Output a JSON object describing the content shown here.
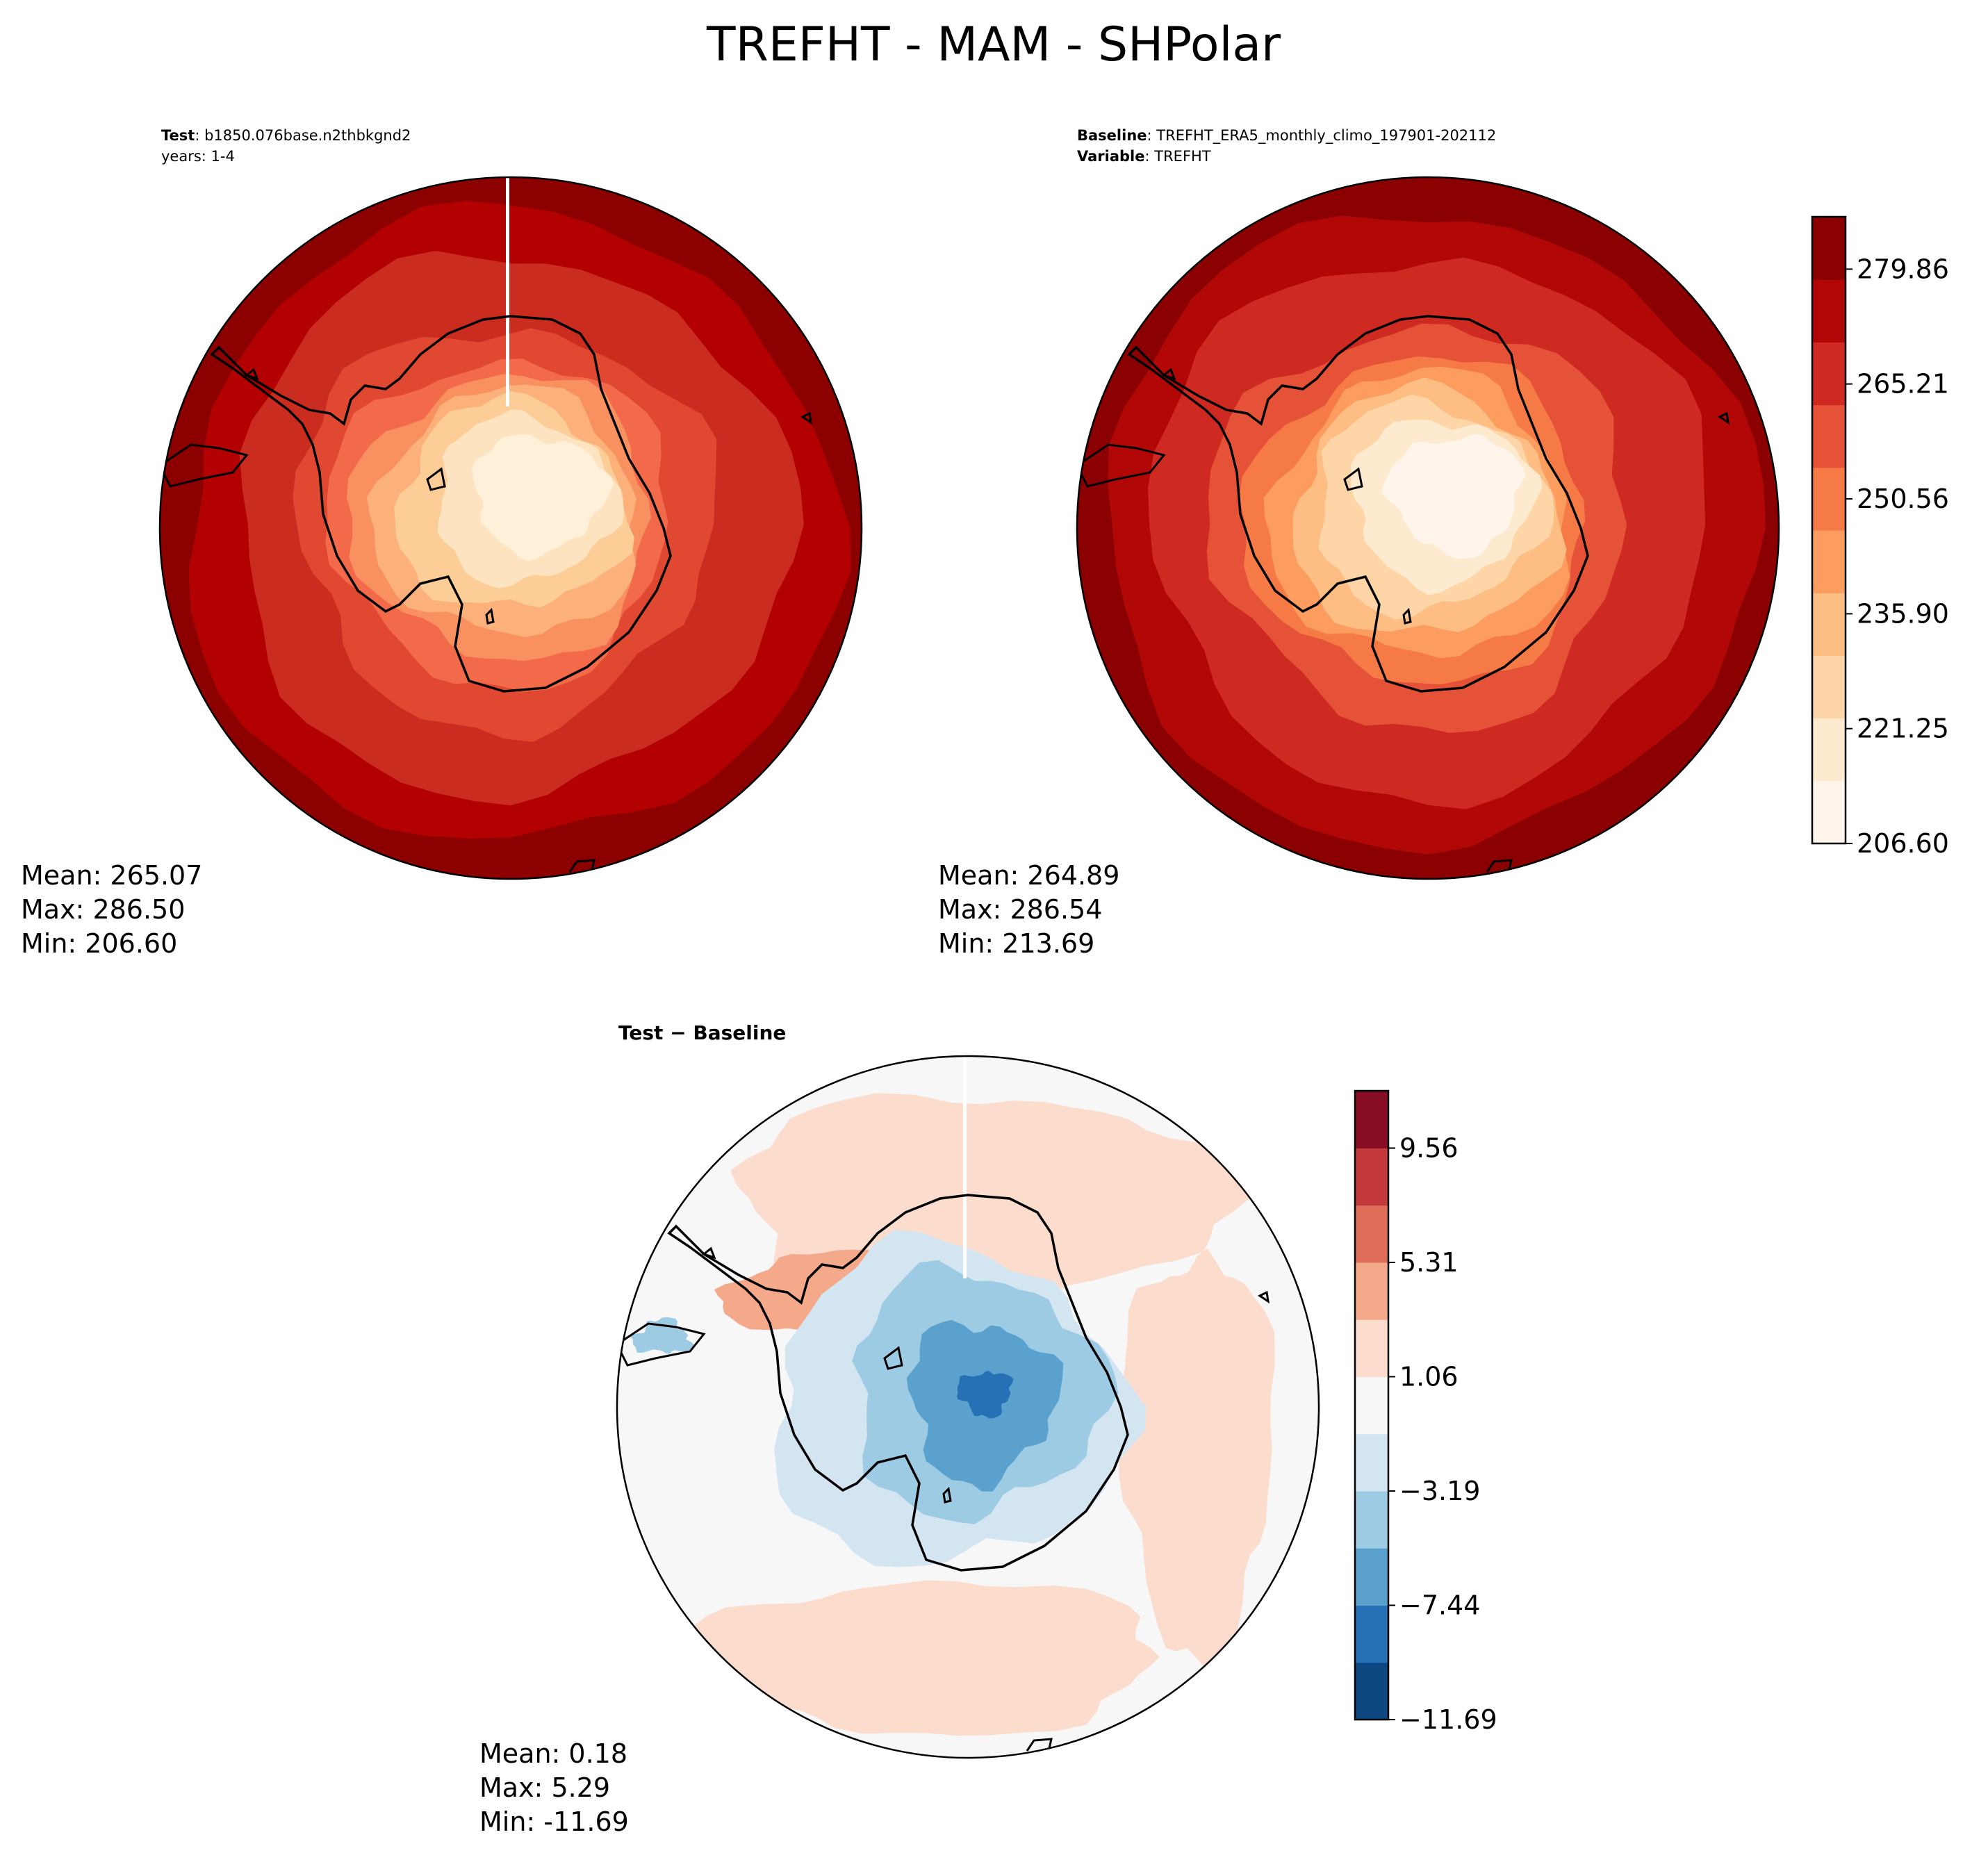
{
  "figure": {
    "suptitle": "TREFHT - MAM - SHPolar"
  },
  "chart_data": [
    {
      "type": "heatmap",
      "projection": "south-polar-stereographic",
      "header": {
        "line1_label": "Test",
        "line1_sep": ": ",
        "line1_value": "b1850.076base.n2thbkgnd2",
        "line2": "years: 1-4"
      },
      "stats": {
        "mean": "Mean: 265.07",
        "max": "Max: 286.50",
        "min": "Min: 206.60"
      },
      "colormap": "OrRd",
      "shading_bands": [
        "#fef0d9",
        "#fde3c0",
        "#fdcd97",
        "#fcb07a",
        "#f99060",
        "#f36a4a",
        "#e04832",
        "#ca2c1f",
        "#b30000",
        "#8c0000"
      ]
    },
    {
      "type": "heatmap",
      "projection": "south-polar-stereographic",
      "header": {
        "line1_label": "Baseline",
        "line1_sep": ": ",
        "line1_value": "TREFHT_ERA5_monthly_climo_197901-202112",
        "line2_label": "Variable",
        "line2_sep": ": ",
        "line2_value": "TREFHT"
      },
      "stats": {
        "mean": "Mean: 264.89",
        "max": "Max: 286.54",
        "min": "Min: 213.69"
      },
      "colorbar": {
        "colors": [
          "#fff5eb",
          "#feebcf",
          "#fdd5a6",
          "#fdbd83",
          "#fc9c5f",
          "#f57a46",
          "#e55238",
          "#cf2a22",
          "#b20707",
          "#8b0000"
        ],
        "ticks": [
          206.6,
          221.25,
          235.9,
          250.56,
          265.21,
          279.86
        ],
        "tick_labels": [
          "206.60",
          "221.25",
          "235.90",
          "250.56",
          "265.21",
          "279.86"
        ],
        "vmin": 206.6,
        "vmax": 286.54
      }
    },
    {
      "type": "heatmap",
      "projection": "south-polar-stereographic",
      "title": "Test − Baseline",
      "stats": {
        "mean": "Mean:  0.18",
        "max": "Max:  5.29",
        "min": "Min: -11.69"
      },
      "colorbar": {
        "colors": [
          "#0d4782",
          "#2670b6",
          "#5aa1ce",
          "#9ccbe3",
          "#d3e5f1",
          "#f7f7f7",
          "#fbdccd",
          "#f4a98b",
          "#de6d59",
          "#c3383a",
          "#870d25"
        ],
        "ticks": [
          -11.69,
          -7.44,
          -3.19,
          1.06,
          5.31,
          9.56
        ],
        "tick_labels": [
          "−11.69",
          "−7.44",
          "−3.19",
          "1.06",
          "5.31",
          "9.56"
        ],
        "vmin": -11.69,
        "vmax": 11.69
      }
    }
  ]
}
